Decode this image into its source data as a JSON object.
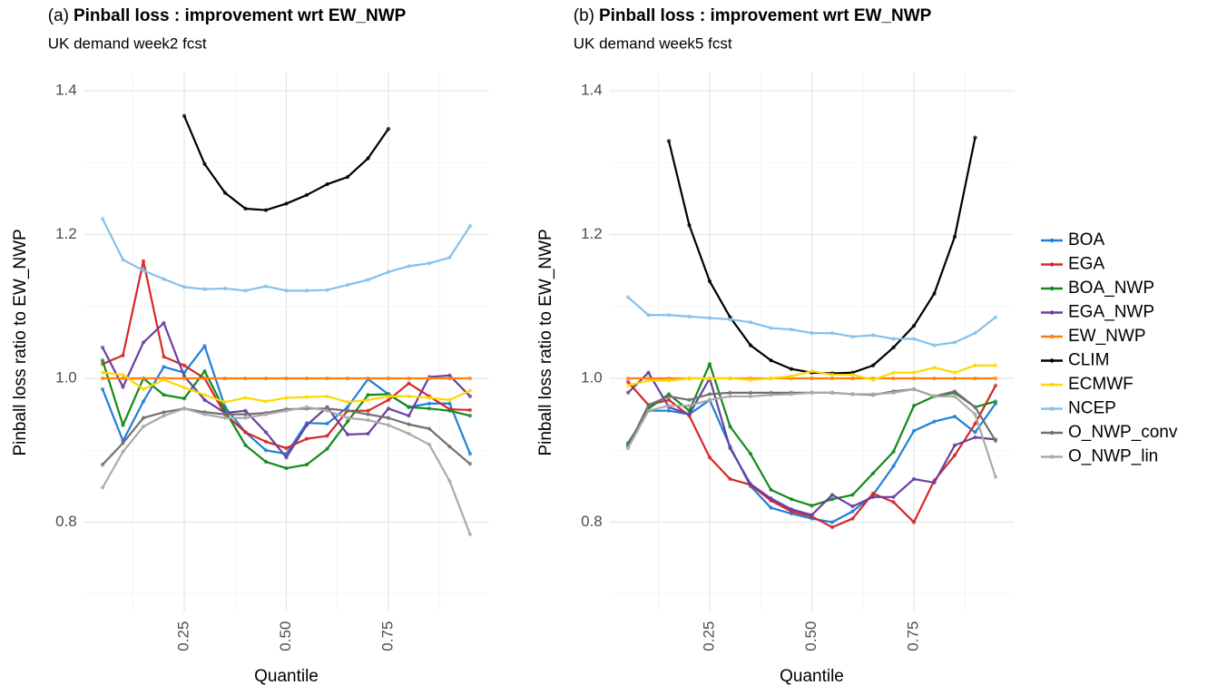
{
  "chart_data": [
    {
      "type": "line",
      "tag": "(a)",
      "title": "Pinball loss : improvement wrt EW_NWP",
      "subtitle": "UK demand week2 fcst",
      "x_label": "Quantile",
      "y_label": "Pinball loss ratio to EW_NWP",
      "x": [
        0.05,
        0.1,
        0.15,
        0.2,
        0.25,
        0.3,
        0.35,
        0.4,
        0.45,
        0.5,
        0.55,
        0.6,
        0.65,
        0.7,
        0.75,
        0.8,
        0.85,
        0.9,
        0.95
      ],
      "xlim": [
        0.005,
        0.995
      ],
      "ylim": [
        0.675,
        1.425
      ],
      "xticks": [
        {
          "value": 0.25,
          "label": "0.25"
        },
        {
          "value": 0.5,
          "label": "0.50"
        },
        {
          "value": 0.75,
          "label": "0.75"
        }
      ],
      "yticks": [
        0.8,
        {
          "value": 1.0,
          "label": "1.0"
        },
        1.2,
        1.4
      ],
      "minor_xticks": [
        0.125,
        0.375,
        0.625,
        0.875
      ],
      "minor_yticks": [
        0.7,
        0.9,
        1.1,
        1.3
      ],
      "grid": true,
      "series": [
        {
          "values": [
            0.985,
            0.913,
            0.968,
            1.016,
            1.008,
            1.045,
            0.96,
            0.925,
            0.9,
            0.895,
            0.938,
            0.937,
            0.96,
            0.999,
            0.978,
            0.96,
            0.965,
            0.965,
            0.895
          ]
        },
        {
          "values": [
            1.02,
            1.032,
            1.163,
            1.03,
            1.018,
            1.0,
            0.95,
            0.925,
            0.912,
            0.903,
            0.916,
            0.92,
            0.955,
            0.955,
            0.97,
            0.993,
            0.975,
            0.957,
            0.956
          ]
        },
        {
          "values": [
            1.025,
            0.935,
            1.0,
            0.977,
            0.972,
            1.01,
            0.955,
            0.907,
            0.884,
            0.875,
            0.88,
            0.902,
            0.94,
            0.977,
            0.978,
            0.96,
            0.958,
            0.955,
            0.948
          ]
        },
        {
          "values": [
            1.043,
            0.988,
            1.05,
            1.077,
            1.003,
            0.97,
            0.952,
            0.955,
            0.925,
            0.89,
            0.935,
            0.96,
            0.922,
            0.923,
            0.958,
            0.948,
            1.002,
            1.004,
            0.975
          ]
        },
        {
          "values": [
            1,
            1,
            1,
            1,
            1,
            1,
            1,
            1,
            1,
            1,
            1,
            1,
            1,
            1,
            1,
            1,
            1,
            1,
            1
          ]
        },
        {
          "values": [
            null,
            null,
            null,
            null,
            1.365,
            1.298,
            1.258,
            1.236,
            1.234,
            1.243,
            1.255,
            1.27,
            1.28,
            1.306,
            1.347,
            null,
            null,
            null,
            null
          ]
        },
        {
          "values": [
            1.008,
            1.005,
            0.985,
            0.998,
            0.987,
            0.977,
            0.967,
            0.973,
            0.968,
            0.973,
            0.974,
            0.975,
            0.967,
            0.97,
            0.975,
            0.975,
            0.973,
            0.97,
            0.983
          ]
        },
        {
          "values": [
            1.222,
            1.165,
            1.15,
            1.138,
            1.127,
            1.124,
            1.125,
            1.122,
            1.128,
            1.122,
            1.122,
            1.123,
            1.13,
            1.137,
            1.148,
            1.156,
            1.16,
            1.168,
            1.212
          ]
        },
        {
          "values": [
            0.88,
            0.91,
            0.945,
            0.953,
            0.958,
            0.953,
            0.95,
            0.95,
            0.952,
            0.957,
            0.958,
            0.958,
            0.955,
            0.95,
            0.945,
            0.936,
            0.93,
            0.905,
            0.881
          ]
        },
        {
          "values": [
            0.848,
            0.898,
            0.933,
            0.948,
            0.958,
            0.95,
            0.945,
            0.945,
            0.95,
            0.955,
            0.96,
            0.955,
            0.945,
            0.942,
            0.935,
            0.923,
            0.908,
            0.857,
            0.783
          ]
        }
      ]
    },
    {
      "type": "line",
      "tag": "(b)",
      "title": "Pinball loss : improvement wrt EW_NWP",
      "subtitle": "UK demand week5 fcst",
      "x_label": "Quantile",
      "y_label": "Pinball loss ratio to EW_NWP",
      "x": [
        0.05,
        0.1,
        0.15,
        0.2,
        0.25,
        0.3,
        0.35,
        0.4,
        0.45,
        0.5,
        0.55,
        0.6,
        0.65,
        0.7,
        0.75,
        0.8,
        0.85,
        0.9,
        0.95
      ],
      "xlim": [
        0.005,
        0.995
      ],
      "ylim": [
        0.675,
        1.425
      ],
      "xticks": [
        {
          "value": 0.25,
          "label": "0.25"
        },
        {
          "value": 0.5,
          "label": "0.50"
        },
        {
          "value": 0.75,
          "label": "0.75"
        }
      ],
      "yticks": [
        0.8,
        {
          "value": 1.0,
          "label": "1.0"
        },
        1.2,
        1.4
      ],
      "minor_xticks": [
        0.125,
        0.375,
        0.625,
        0.875
      ],
      "minor_yticks": [
        0.7,
        0.9,
        1.1,
        1.3
      ],
      "grid": true,
      "series": [
        {
          "values": [
            0.91,
            0.955,
            0.955,
            0.95,
            0.97,
            0.905,
            0.85,
            0.82,
            0.812,
            0.805,
            0.8,
            0.815,
            0.838,
            0.878,
            0.927,
            0.94,
            0.947,
            0.925,
            0.965
          ]
        },
        {
          "values": [
            0.995,
            0.963,
            0.97,
            0.948,
            0.89,
            0.86,
            0.852,
            0.83,
            0.815,
            0.808,
            0.793,
            0.805,
            0.84,
            0.828,
            0.8,
            0.858,
            0.893,
            0.937,
            0.99
          ]
        },
        {
          "values": [
            0.908,
            0.958,
            0.978,
            0.955,
            1.02,
            0.933,
            0.895,
            0.845,
            0.832,
            0.823,
            0.832,
            0.838,
            0.868,
            0.898,
            0.962,
            0.975,
            0.98,
            0.96,
            0.968
          ]
        },
        {
          "values": [
            0.98,
            1.008,
            0.96,
            0.95,
            1.0,
            0.903,
            0.853,
            0.833,
            0.818,
            0.81,
            0.838,
            0.822,
            0.835,
            0.835,
            0.86,
            0.855,
            0.907,
            0.918,
            0.915
          ]
        },
        {
          "values": [
            1,
            1,
            1,
            1,
            1,
            1,
            1,
            1,
            1,
            1,
            1,
            1,
            1,
            1,
            1,
            1,
            1,
            1,
            1
          ]
        },
        {
          "values": [
            null,
            null,
            1.33,
            1.213,
            1.135,
            1.085,
            1.046,
            1.025,
            1.013,
            1.008,
            1.007,
            1.008,
            1.018,
            1.043,
            1.073,
            1.118,
            1.197,
            1.335,
            null
          ]
        },
        {
          "values": [
            0.99,
            0.997,
            0.997,
            1.0,
            1.0,
            1.0,
            0.998,
            1.0,
            1.003,
            1.01,
            1.005,
            1.005,
            0.998,
            1.008,
            1.008,
            1.015,
            1.008,
            1.018,
            1.018
          ]
        },
        {
          "values": [
            1.113,
            1.088,
            1.088,
            1.086,
            1.084,
            1.082,
            1.078,
            1.07,
            1.068,
            1.063,
            1.063,
            1.058,
            1.06,
            1.055,
            1.055,
            1.046,
            1.05,
            1.063,
            1.085
          ]
        },
        {
          "values": [
            0.905,
            0.963,
            0.975,
            0.97,
            0.978,
            0.98,
            0.98,
            0.98,
            0.98,
            0.98,
            0.98,
            0.978,
            0.977,
            0.982,
            0.985,
            0.975,
            0.982,
            0.96,
            0.913
          ]
        },
        {
          "values": [
            0.903,
            0.955,
            0.962,
            0.962,
            0.97,
            0.975,
            0.975,
            0.977,
            0.978,
            0.98,
            0.98,
            0.978,
            0.978,
            0.98,
            0.985,
            0.975,
            0.975,
            0.95,
            0.863
          ]
        }
      ]
    }
  ],
  "legend": [
    {
      "name": "BOA",
      "color": "#1f7fd8"
    },
    {
      "name": "EGA",
      "color": "#d62728"
    },
    {
      "name": "BOA_NWP",
      "color": "#13891b"
    },
    {
      "name": "EGA_NWP",
      "color": "#6b3fa0"
    },
    {
      "name": "EW_NWP",
      "color": "#ff7f0e"
    },
    {
      "name": "CLIM",
      "color": "#000000"
    },
    {
      "name": "ECMWF",
      "color": "#ffd700"
    },
    {
      "name": "NCEP",
      "color": "#85c1ea"
    },
    {
      "name": "O_NWP_conv",
      "color": "#766e6e"
    },
    {
      "name": "O_NWP_lin",
      "color": "#aaaaaa"
    }
  ]
}
